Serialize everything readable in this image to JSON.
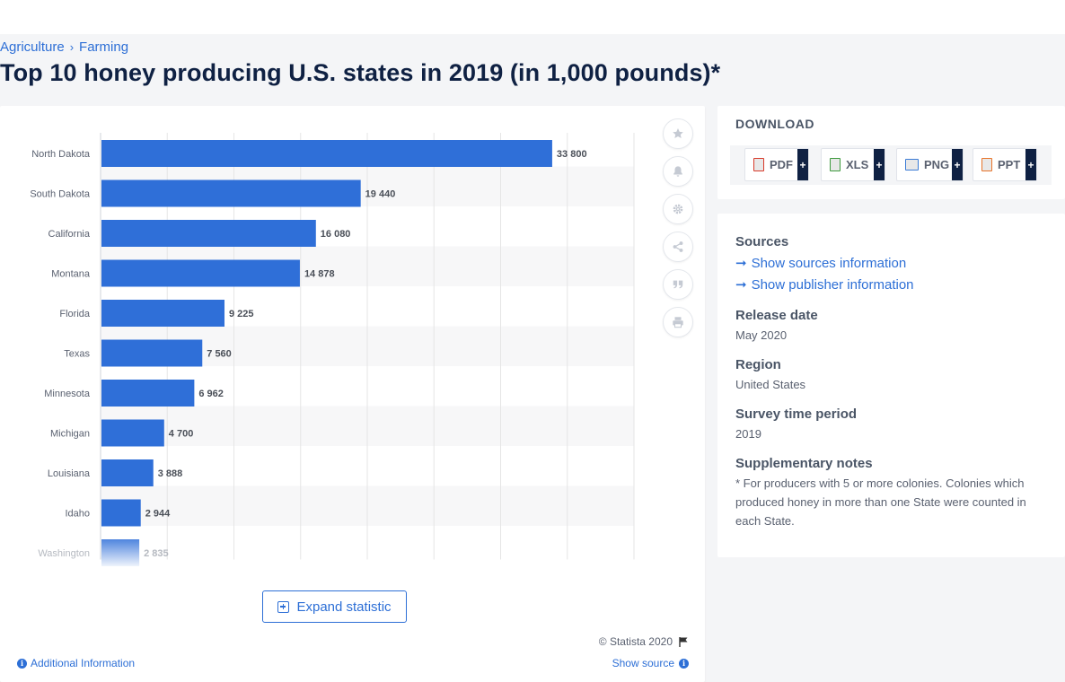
{
  "breadcrumb": {
    "level1": "Agriculture",
    "level2": "Farming"
  },
  "page_title": "Top 10 honey producing U.S. states in 2019 (in 1,000 pounds)*",
  "chart_data": {
    "type": "bar",
    "orientation": "horizontal",
    "categories": [
      "North Dakota",
      "South Dakota",
      "California",
      "Montana",
      "Florida",
      "Texas",
      "Minnesota",
      "Michigan",
      "Louisiana",
      "Idaho",
      "Washington"
    ],
    "values": [
      33800,
      19440,
      16080,
      14878,
      9225,
      7560,
      6962,
      4700,
      3888,
      2944,
      2835
    ],
    "value_labels": [
      "33 800",
      "19 440",
      "16 080",
      "14 878",
      "9 225",
      "7 560",
      "6 962",
      "4 700",
      "3 888",
      "2 944",
      "2 835"
    ],
    "xlim": [
      0,
      40000
    ],
    "grid": true,
    "bar_color": "#2f6fd8",
    "last_row_faded": true
  },
  "tools": [
    "star-icon",
    "bell-icon",
    "gear-icon",
    "share-icon",
    "quote-icon",
    "print-icon"
  ],
  "expand_label": "Expand statistic",
  "copyright": "© Statista 2020",
  "additional_info": "Additional Information",
  "show_source": "Show source",
  "download": {
    "title": "DOWNLOAD",
    "buttons": [
      {
        "label": "PDF",
        "color": "#d83a2a"
      },
      {
        "label": "XLS",
        "color": "#3d9a3d"
      },
      {
        "label": "PNG",
        "color": "#3a7bd5"
      },
      {
        "label": "PPT",
        "color": "#e8742a"
      }
    ],
    "plus": "+"
  },
  "info": {
    "sources_heading": "Sources",
    "show_sources": "Show sources information",
    "show_publisher": "Show publisher information",
    "release_date_heading": "Release date",
    "release_date": "May 2020",
    "region_heading": "Region",
    "region": "United States",
    "survey_heading": "Survey time period",
    "survey": "2019",
    "notes_heading": "Supplementary notes",
    "notes": "* For producers with 5 or more colonies. Colonies which produced honey in more than one State were counted in each State."
  }
}
